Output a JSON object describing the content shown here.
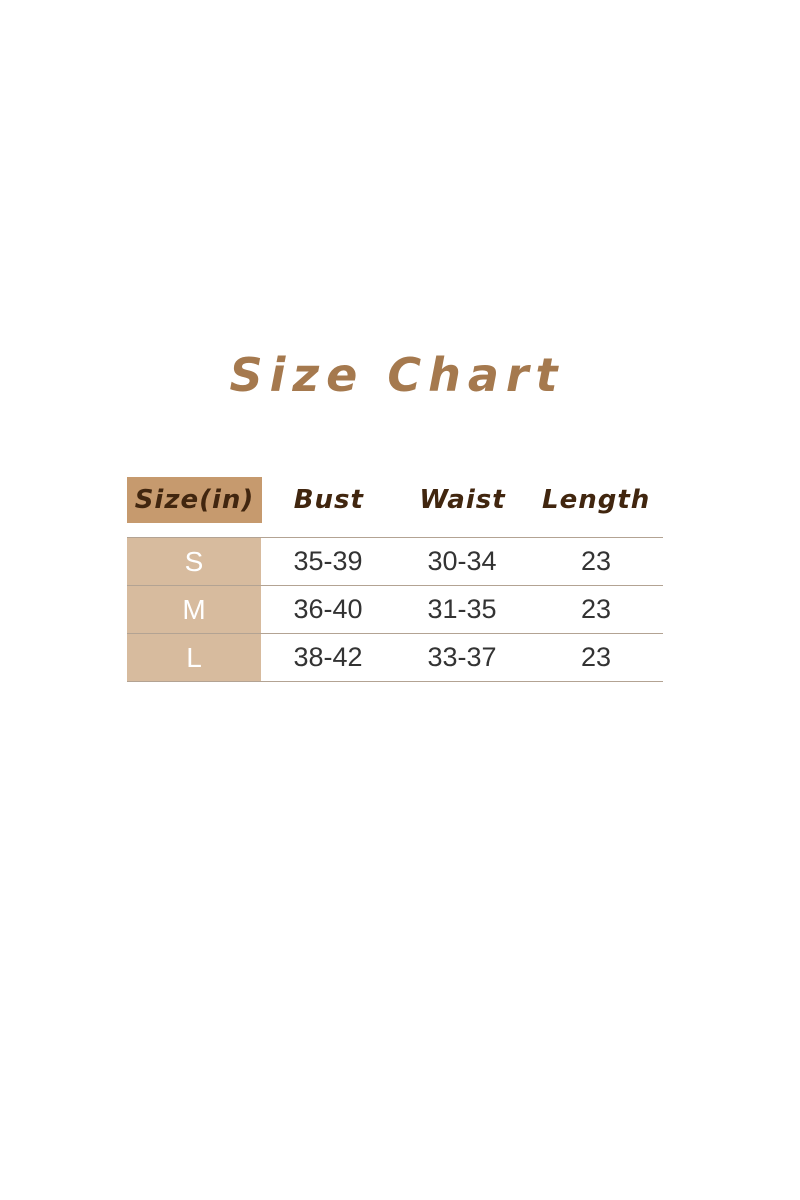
{
  "title": "Size Chart",
  "colors": {
    "title_text": "#a5794e",
    "header_cell_bg": "#c69a6e",
    "header_text": "#41260f",
    "size_column_bg": "#d7bb9e",
    "size_column_text": "#ffffff",
    "cell_text": "#333333",
    "divider_line": "#b3a393",
    "background": "#ffffff"
  },
  "table": {
    "headers": [
      "Size(in)",
      "Bust",
      "Waist",
      "Length"
    ],
    "rows": [
      {
        "size": "S",
        "bust": "35-39",
        "waist": "30-34",
        "length": "23"
      },
      {
        "size": "M",
        "bust": "36-40",
        "waist": "31-35",
        "length": "23"
      },
      {
        "size": "L",
        "bust": "38-42",
        "waist": "33-37",
        "length": "23"
      }
    ]
  },
  "chart_data": {
    "type": "table",
    "title": "Size Chart",
    "unit": "inches",
    "columns": [
      "Size(in)",
      "Bust",
      "Waist",
      "Length"
    ],
    "rows": [
      [
        "S",
        "35-39",
        "30-34",
        "23"
      ],
      [
        "M",
        "36-40",
        "31-35",
        "23"
      ],
      [
        "L",
        "38-42",
        "33-37",
        "23"
      ]
    ]
  }
}
